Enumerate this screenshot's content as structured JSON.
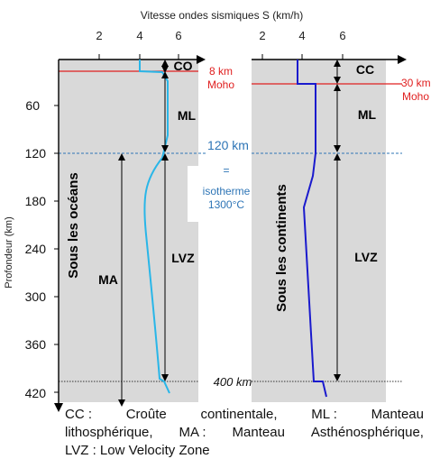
{
  "title": "Vitesse ondes sismiques S (km/h)",
  "y_axis_label": "Profondeur (km)",
  "x_ticks_left": [
    "2",
    "4",
    "6"
  ],
  "x_ticks_right": [
    "2",
    "4",
    "6"
  ],
  "y_ticks": [
    "60",
    "120",
    "180",
    "240",
    "300",
    "360",
    "420"
  ],
  "ocean": {
    "label": "Sous les océans",
    "moho_label_1": "8 km",
    "moho_label_2": "Moho",
    "layers": {
      "cc": "CO",
      "ml": "ML",
      "lvz": "LVZ",
      "ma": "MA"
    }
  },
  "continent": {
    "label": "Sous les continents",
    "moho_label_1": "30 km",
    "moho_label_2": "Moho",
    "layers": {
      "cc": "CC",
      "ml": "ML",
      "lvz": "LVZ"
    }
  },
  "isotherm": {
    "depth": "120 km",
    "equals": "=",
    "line1": "isotherme",
    "line2": "1300°C"
  },
  "bottom_depth": "400 km",
  "caption": {
    "line1": [
      "CC :",
      "Croûte",
      "continentale,",
      "ML :",
      "Manteau"
    ],
    "line2": [
      "lithosphérique,",
      "MA :",
      "Manteau",
      "Asthénosphérique,"
    ],
    "line3": "LVZ : Low Velocity Zone"
  },
  "colors": {
    "panel_bg": "#d9d9d9",
    "moho": "#e02020",
    "isotherm_line": "#2e75b6",
    "isotherm_text": "#2e75b6",
    "ocean_curve": "#29b6e8",
    "continent_curve": "#1a1acd"
  }
}
